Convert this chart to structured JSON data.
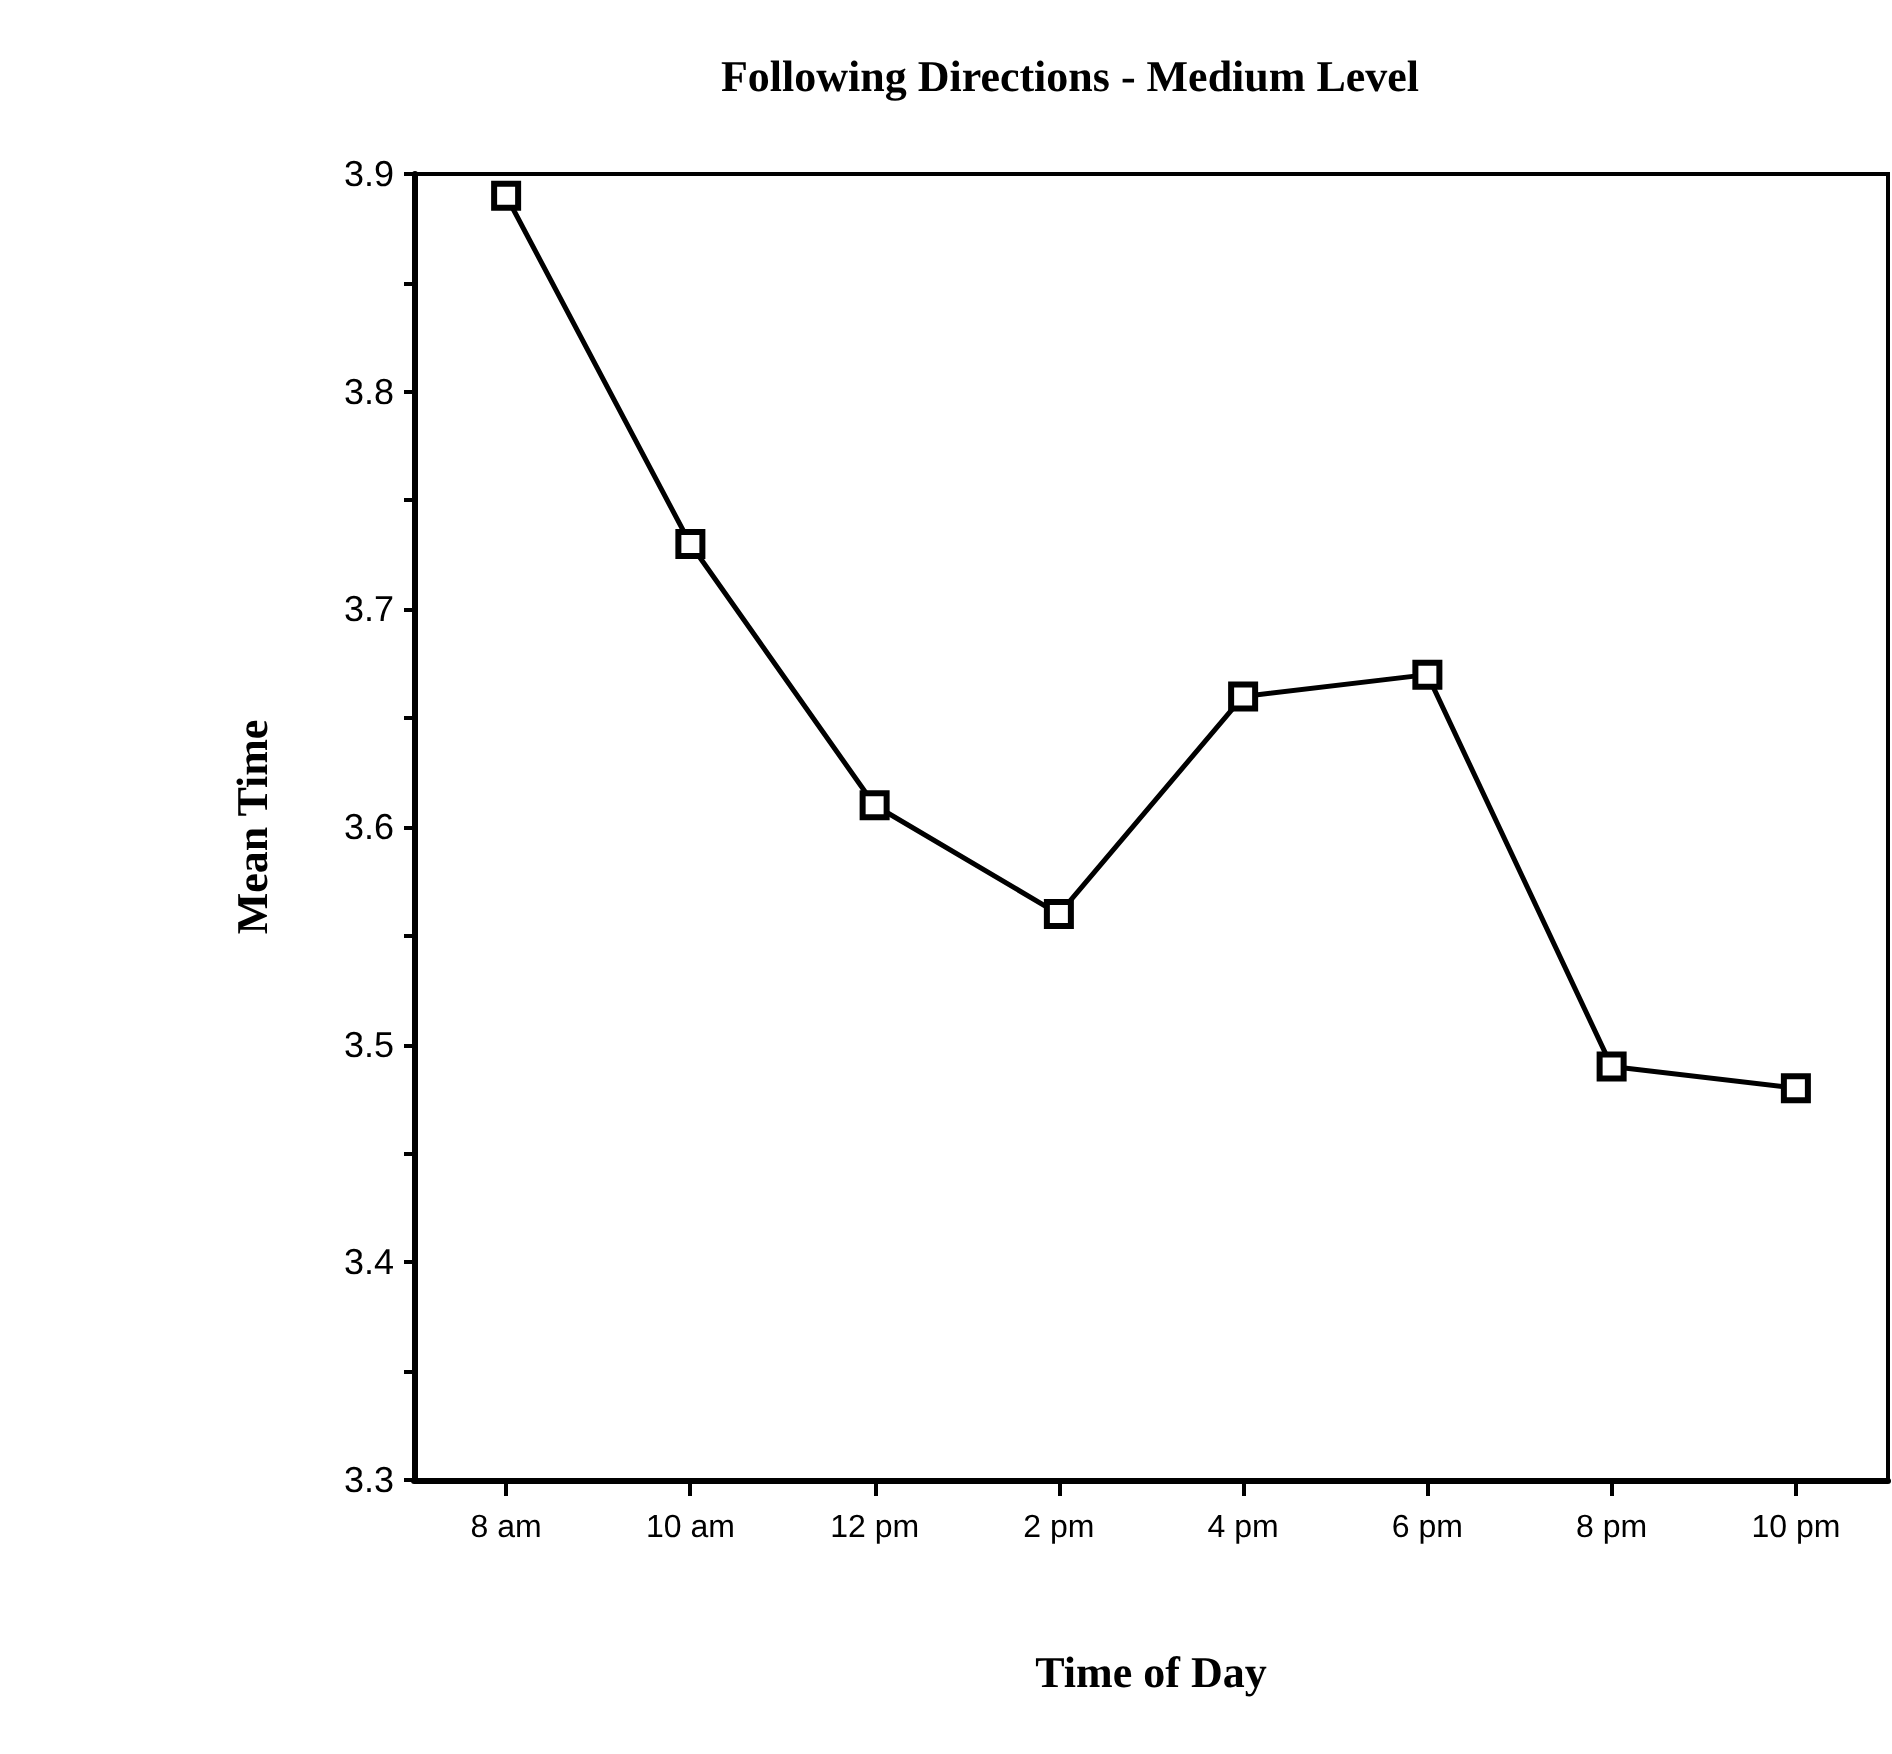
{
  "chart_data": {
    "type": "line",
    "title": "Following Directions - Medium Level",
    "xlabel": "Time of Day",
    "ylabel": "Mean Time",
    "categories": [
      "8 am",
      "10 am",
      "12 pm",
      "2 pm",
      "4 pm",
      "6 pm",
      "8 pm",
      "10 pm"
    ],
    "series": [
      {
        "color": "#000000",
        "values": [
          3.89,
          3.73,
          3.61,
          3.56,
          3.66,
          3.67,
          3.49,
          3.48
        ]
      }
    ],
    "ylim": [
      3.3,
      3.9
    ],
    "yticks": [
      3.3,
      {
        "value": 3.35,
        "label": null
      },
      3.4,
      {
        "value": 3.45,
        "label": null
      },
      3.5,
      {
        "value": 3.55,
        "label": null
      },
      3.6,
      {
        "value": 3.65,
        "label": null
      },
      3.7,
      {
        "value": 3.75,
        "label": null
      },
      3.8,
      {
        "value": 3.85,
        "label": null
      },
      3.9
    ],
    "grid": false,
    "marker": "square",
    "line_style": "solid"
  }
}
